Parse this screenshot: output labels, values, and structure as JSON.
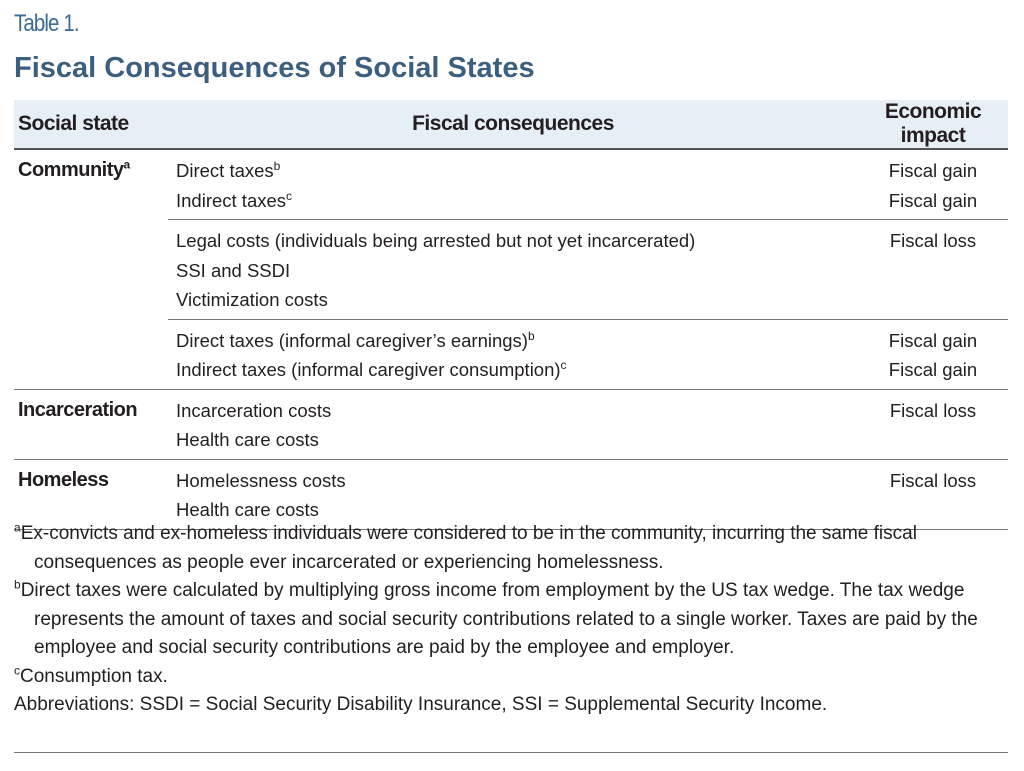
{
  "label": "Table 1.",
  "title": "Fiscal Consequences of Social States",
  "table": {
    "columns": [
      "Social state",
      "Fiscal consequences",
      "Economic impact"
    ],
    "groups": [
      {
        "state": "Community",
        "state_sup": "a",
        "blocks": [
          {
            "lines": [
              {
                "text": "Direct taxes",
                "sup": "b",
                "impact": "Fiscal gain"
              },
              {
                "text": "Indirect taxes",
                "sup": "c",
                "impact": "Fiscal gain"
              }
            ]
          },
          {
            "lines": [
              {
                "text": "Legal costs (individuals being arrested but not yet incarcerated)",
                "impact": "Fiscal loss"
              },
              {
                "text": "SSI and SSDI"
              },
              {
                "text": "Victimization costs"
              }
            ]
          },
          {
            "lines": [
              {
                "text": "Direct taxes (informal caregiver’s earnings)",
                "sup": "b",
                "impact": "Fiscal gain"
              },
              {
                "text": "Indirect taxes (informal caregiver consumption)",
                "sup": "c",
                "impact": "Fiscal gain"
              }
            ]
          }
        ]
      },
      {
        "state": "Incarceration",
        "blocks": [
          {
            "lines": [
              {
                "text": "Incarceration costs",
                "impact": "Fiscal loss"
              },
              {
                "text": "Health care costs"
              }
            ]
          }
        ]
      },
      {
        "state": "Homeless",
        "blocks": [
          {
            "lines": [
              {
                "text": "Homelessness costs",
                "impact": "Fiscal loss"
              },
              {
                "text": "Health care costs"
              }
            ]
          }
        ]
      }
    ]
  },
  "footnotes": [
    {
      "mark": "a",
      "text": "Ex-convicts and ex-homeless individuals were considered to be in the community, incurring the same fiscal consequences as people ever incarcerated or experiencing homelessness."
    },
    {
      "mark": "b",
      "text": "Direct taxes were calculated by multiplying gross income from employment by the US tax wedge. The tax wedge represents the amount of taxes and social security contributions related to a single worker. Taxes are paid by the employee and social security contributions are paid by the employee and employer."
    },
    {
      "mark": "c",
      "text": "Consumption tax."
    }
  ],
  "abbreviations": "Abbreviations: SSDI = Social Security Disability Insurance, SSI = Supplemental Security Income."
}
